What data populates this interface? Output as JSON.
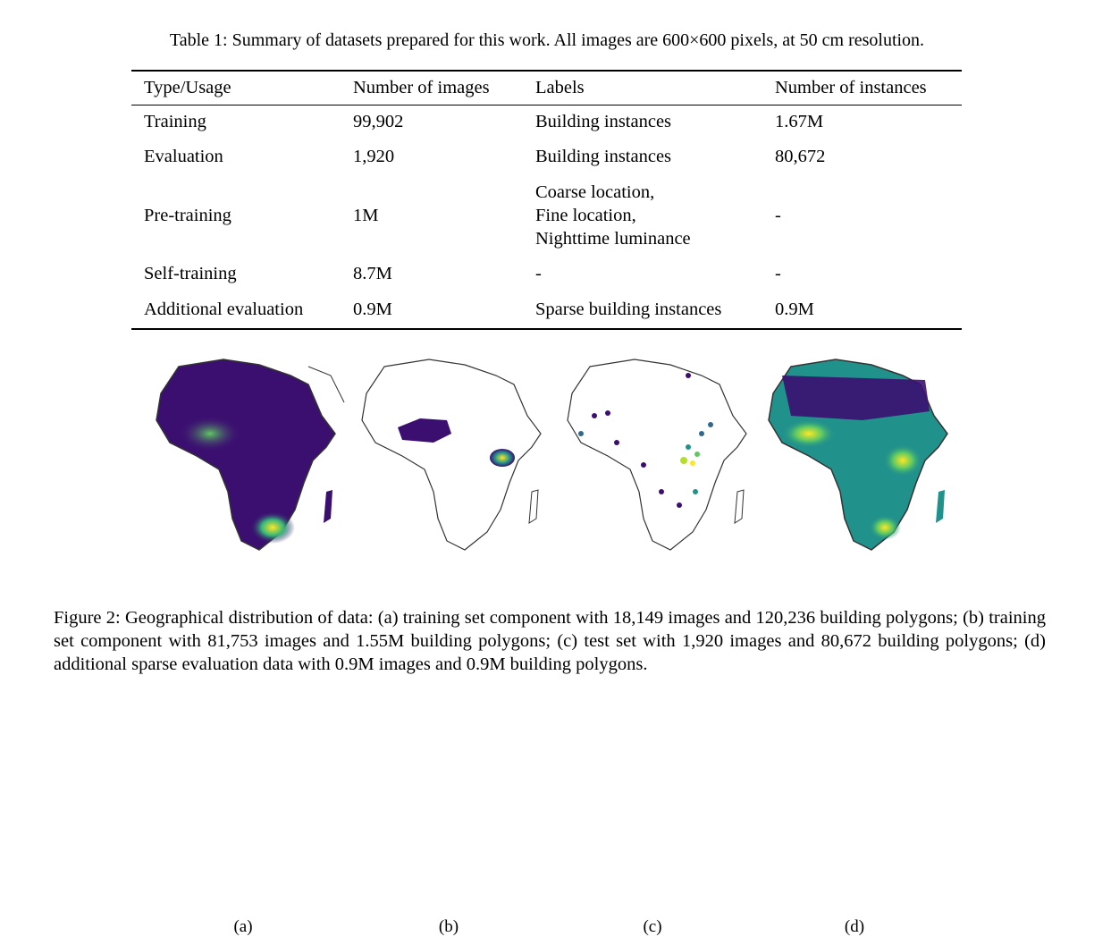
{
  "table": {
    "caption": "Table 1: Summary of datasets prepared for this work. All images are 600×600 pixels, at 50 cm resolution.",
    "headers": [
      "Type/Usage",
      "Number of images",
      "Labels",
      "Number of instances"
    ],
    "rows": [
      {
        "type": "Training",
        "images": "99,902",
        "labels": [
          "Building instances"
        ],
        "instances": "1.67M"
      },
      {
        "type": "Evaluation",
        "images": "1,920",
        "labels": [
          "Building instances"
        ],
        "instances": "80,672"
      },
      {
        "type": "Pre-training",
        "images": "1M",
        "labels": [
          "Coarse location,",
          "Fine location,",
          "Nighttime luminance"
        ],
        "instances": "-"
      },
      {
        "type": "Self-training",
        "images": "8.7M",
        "labels": [
          "-"
        ],
        "instances": "-"
      },
      {
        "type": "Additional evaluation",
        "images": "0.9M",
        "labels": [
          "Sparse building instances"
        ],
        "instances": "0.9M"
      }
    ]
  },
  "figure": {
    "panel_labels": [
      "(a)",
      "(b)",
      "(c)",
      "(d)"
    ],
    "caption": "Figure 2: Geographical distribution of data: (a) training set component with 18,149 images and 120,236 building polygons; (b) training set component with 81,753 images and 1.55M building polygons; (c) test set with 1,920 images and 80,672 building polygons; (d) additional sparse evaluation data with 0.9M images and 0.9M building polygons.",
    "colors": {
      "low": "#3b0f70",
      "mid": "#21918c",
      "high": "#fde725",
      "outline": "#333333"
    }
  }
}
